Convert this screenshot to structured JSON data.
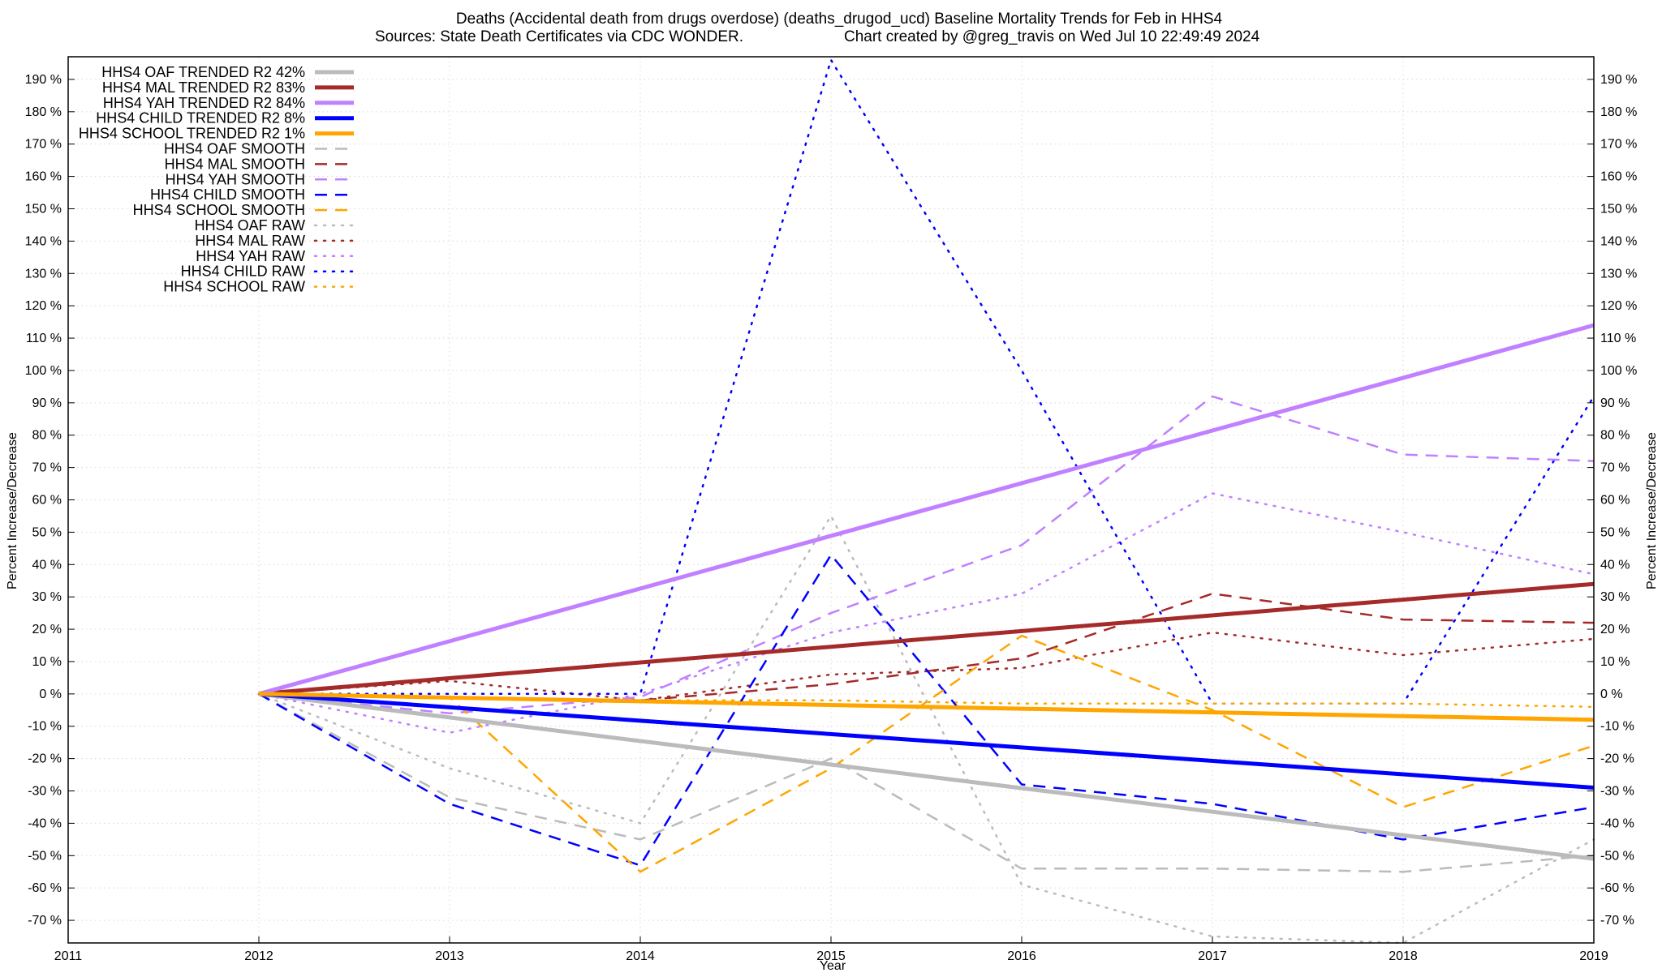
{
  "chart_data": {
    "type": "line",
    "title": "Deaths (Accidental death from drugs overdose) (deaths_drugod_ucd)  Baseline Mortality Trends for Feb in HHS4",
    "subtitle_left": "Sources: State Death Certificates via CDC WONDER.",
    "subtitle_right": "Chart created by @greg_travis on Wed Jul 10 22:49:49 2024",
    "xlabel": "Year",
    "ylabel_left": "Percent Increase/Decrease",
    "ylabel_right": "Percent Increase/Decrease",
    "xlim": [
      2011,
      2019
    ],
    "ylim": [
      -77,
      197
    ],
    "x_ticks": [
      "2011",
      "2012",
      "2013",
      "2014",
      "2015",
      "2016",
      "2017",
      "2018",
      "2019"
    ],
    "y_ticks": [
      190,
      180,
      170,
      160,
      150,
      140,
      130,
      120,
      110,
      100,
      90,
      80,
      70,
      60,
      50,
      40,
      30,
      20,
      10,
      0,
      -10,
      -20,
      -30,
      -40,
      -50,
      -60,
      -70
    ],
    "y_tick_suffix": " %",
    "grid": true,
    "legend_position": "top-left",
    "series": [
      {
        "name": "HHS4 OAF TRENDED R2  42%",
        "color": "#bbbbbb",
        "style": "solid",
        "x": [
          2012,
          2019
        ],
        "values": [
          0,
          -51
        ]
      },
      {
        "name": "HHS4 MAL TRENDED R2  83%",
        "color": "#a52a2a",
        "style": "solid",
        "x": [
          2012,
          2019
        ],
        "values": [
          0,
          34
        ]
      },
      {
        "name": "HHS4 YAH TRENDED R2  84%",
        "color": "#c080ff",
        "style": "solid",
        "x": [
          2012,
          2019
        ],
        "values": [
          0,
          114
        ]
      },
      {
        "name": "HHS4 CHILD TRENDED R2   8%",
        "color": "#0000ff",
        "style": "solid",
        "x": [
          2012,
          2019
        ],
        "values": [
          0,
          -29
        ]
      },
      {
        "name": "HHS4 SCHOOL TRENDED R2   1%",
        "color": "#ffa500",
        "style": "solid",
        "x": [
          2012,
          2019
        ],
        "values": [
          0,
          -8
        ]
      },
      {
        "name": "HHS4 OAF SMOOTH",
        "color": "#bbbbbb",
        "style": "dashed",
        "x": [
          2012,
          2013,
          2014,
          2015,
          2016,
          2017,
          2018,
          2019
        ],
        "values": [
          0,
          -32,
          -45,
          -20,
          -54,
          -54,
          -55,
          -50
        ]
      },
      {
        "name": "HHS4 MAL SMOOTH",
        "color": "#a52a2a",
        "style": "dashed",
        "x": [
          2012,
          2013,
          2014,
          2015,
          2016,
          2017,
          2018,
          2019
        ],
        "values": [
          0,
          -1,
          -2,
          3,
          11,
          31,
          23,
          22
        ]
      },
      {
        "name": "HHS4 YAH SMOOTH",
        "color": "#c080ff",
        "style": "dashed",
        "x": [
          2012,
          2013,
          2014,
          2015,
          2016,
          2017,
          2018,
          2019
        ],
        "values": [
          0,
          -6,
          -1,
          25,
          46,
          92,
          74,
          72
        ]
      },
      {
        "name": "HHS4 CHILD SMOOTH",
        "color": "#0000ff",
        "style": "dashed",
        "x": [
          2012,
          2013,
          2014,
          2015,
          2016,
          2017,
          2018,
          2019
        ],
        "values": [
          0,
          -34,
          -53,
          43,
          -28,
          -34,
          -45,
          -35
        ]
      },
      {
        "name": "HHS4 SCHOOL SMOOTH",
        "color": "#ffa500",
        "style": "dashed",
        "x": [
          2012,
          2013,
          2014,
          2015,
          2016,
          2017,
          2018,
          2019
        ],
        "values": [
          0,
          -1,
          -55,
          -23,
          18,
          -5,
          -35,
          -16
        ]
      },
      {
        "name": "HHS4 OAF RAW",
        "color": "#bbbbbb",
        "style": "dotted",
        "x": [
          2012,
          2013,
          2014,
          2015,
          2016,
          2017,
          2018,
          2019
        ],
        "values": [
          0,
          -23,
          -40,
          55,
          -59,
          -75,
          -77,
          -45
        ]
      },
      {
        "name": "HHS4 MAL RAW",
        "color": "#a52a2a",
        "style": "dotted",
        "x": [
          2012,
          2013,
          2014,
          2015,
          2016,
          2017,
          2018,
          2019
        ],
        "values": [
          0,
          4,
          -2,
          6,
          8,
          19,
          12,
          17
        ]
      },
      {
        "name": "HHS4 YAH RAW",
        "color": "#c080ff",
        "style": "dotted",
        "x": [
          2012,
          2013,
          2014,
          2015,
          2016,
          2017,
          2018,
          2019
        ],
        "values": [
          0,
          -12,
          0,
          19,
          31,
          62,
          50,
          37
        ]
      },
      {
        "name": "HHS4 CHILD RAW",
        "color": "#0000ff",
        "style": "dotted",
        "x": [
          2012,
          2013,
          2014,
          2015,
          2016,
          2017,
          2018,
          2019
        ],
        "values": [
          0,
          0,
          0,
          196,
          100,
          -3,
          -3,
          92
        ]
      },
      {
        "name": "HHS4 SCHOOL RAW",
        "color": "#ffa500",
        "style": "dotted",
        "x": [
          2012,
          2013,
          2014,
          2015,
          2016,
          2017,
          2018,
          2019
        ],
        "values": [
          0,
          -1,
          -2,
          -2,
          -3,
          -3,
          -3,
          -4
        ]
      }
    ]
  }
}
